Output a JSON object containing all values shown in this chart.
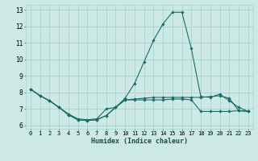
{
  "title": "",
  "xlabel": "Humidex (Indice chaleur)",
  "xlim": [
    -0.5,
    23.5
  ],
  "ylim": [
    5.8,
    13.3
  ],
  "xticks": [
    0,
    1,
    2,
    3,
    4,
    5,
    6,
    7,
    8,
    9,
    10,
    11,
    12,
    13,
    14,
    15,
    16,
    17,
    18,
    19,
    20,
    21,
    22,
    23
  ],
  "yticks": [
    6,
    7,
    8,
    9,
    10,
    11,
    12,
    13
  ],
  "background_color": "#cce9e5",
  "grid_color": "#aad4cf",
  "line_color": "#1a6b6b",
  "line1_y": [
    8.2,
    7.8,
    7.5,
    7.1,
    6.7,
    6.4,
    6.35,
    6.4,
    7.0,
    7.1,
    7.55,
    7.6,
    7.65,
    7.7,
    7.7,
    7.7,
    7.7,
    7.7,
    7.7,
    7.75,
    7.8,
    7.65,
    6.9,
    6.85
  ],
  "line2_y": [
    8.2,
    7.8,
    7.5,
    7.1,
    6.65,
    6.35,
    6.3,
    6.35,
    6.6,
    7.1,
    7.65,
    8.55,
    9.85,
    11.15,
    12.15,
    12.85,
    12.85,
    10.65,
    7.75,
    7.7,
    7.9,
    7.5,
    7.1,
    6.85
  ],
  "line3_y": [
    8.2,
    7.8,
    7.5,
    7.1,
    6.65,
    6.35,
    6.3,
    6.35,
    6.6,
    7.1,
    7.55,
    7.55,
    7.55,
    7.55,
    7.55,
    7.6,
    7.6,
    7.55,
    6.85,
    6.85,
    6.85,
    6.85,
    6.9,
    6.85
  ],
  "tick_fontsize": 5.0,
  "xlabel_fontsize": 6.0,
  "marker_size": 1.8
}
